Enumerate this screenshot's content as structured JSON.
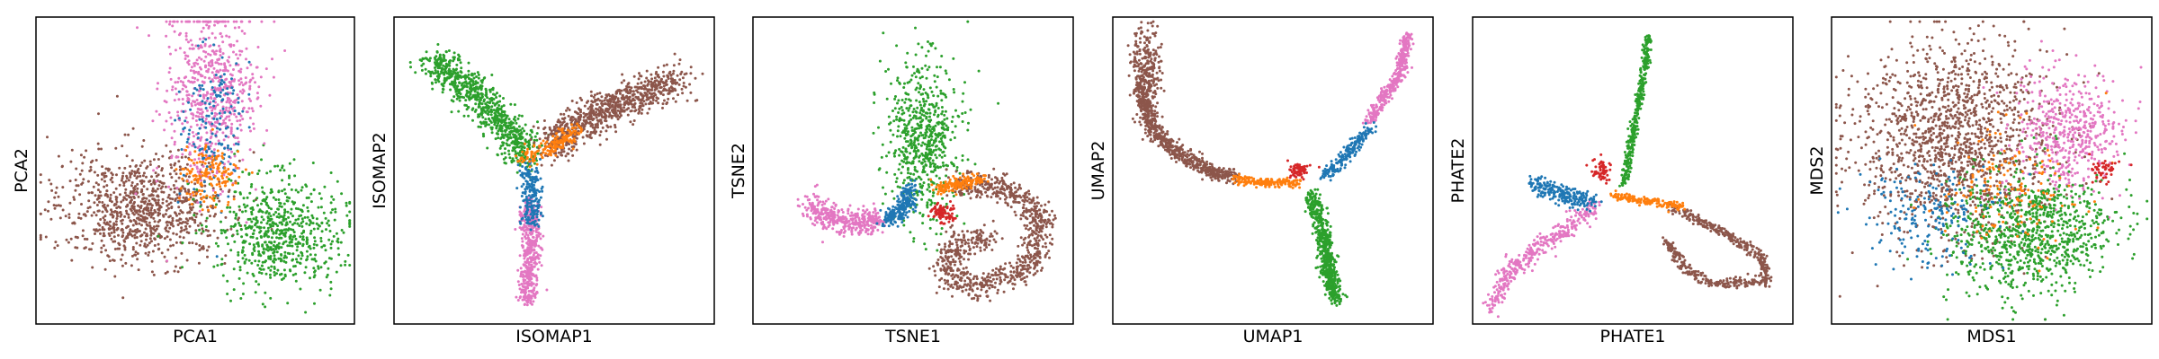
{
  "colors": {
    "blue": "#1f77b4",
    "orange": "#ff7f0e",
    "green": "#2ca02c",
    "red": "#d62728",
    "brown": "#8c564b",
    "pink": "#e377c2"
  },
  "chart_data": [
    {
      "type": "scatter",
      "xlabel": "PCA1",
      "ylabel": "PCA2",
      "xticks": [],
      "yticks": [],
      "grid": false,
      "series": [
        {
          "color": "#8c564b",
          "shape": "blob",
          "center": [
            0.33,
            0.62
          ],
          "spread": [
            0.13,
            0.09
          ],
          "count": 900
        },
        {
          "color": "#2ca02c",
          "shape": "blob",
          "center": [
            0.76,
            0.7
          ],
          "spread": [
            0.1,
            0.09
          ],
          "count": 650
        },
        {
          "color": "#e377c2",
          "shape": "blob",
          "center": [
            0.55,
            0.26
          ],
          "spread": [
            0.07,
            0.15
          ],
          "count": 650
        },
        {
          "color": "#1f77b4",
          "shape": "blob",
          "center": [
            0.55,
            0.35
          ],
          "spread": [
            0.05,
            0.12
          ],
          "count": 160
        },
        {
          "color": "#ff7f0e",
          "shape": "blob",
          "center": [
            0.55,
            0.52
          ],
          "spread": [
            0.05,
            0.05
          ],
          "count": 160
        }
      ]
    },
    {
      "type": "scatter",
      "xlabel": "ISOMAP1",
      "ylabel": "ISOMAP2",
      "xticks": [],
      "yticks": [],
      "grid": false,
      "series": [
        {
          "color": "#2ca02c",
          "shape": "path",
          "path": [
            [
              0.12,
              0.14
            ],
            [
              0.25,
              0.25
            ],
            [
              0.38,
              0.4
            ],
            [
              0.42,
              0.46
            ]
          ],
          "width": 0.055,
          "count": 800
        },
        {
          "color": "#8c564b",
          "shape": "path",
          "path": [
            [
              0.48,
              0.42
            ],
            [
              0.62,
              0.32
            ],
            [
              0.8,
              0.24
            ],
            [
              0.9,
              0.2
            ]
          ],
          "width": 0.06,
          "count": 800
        },
        {
          "color": "#e377c2",
          "shape": "path",
          "path": [
            [
              0.42,
              0.6
            ],
            [
              0.43,
              0.72
            ],
            [
              0.42,
              0.84
            ],
            [
              0.42,
              0.93
            ]
          ],
          "width": 0.03,
          "count": 450
        },
        {
          "color": "#1f77b4",
          "shape": "path",
          "path": [
            [
              0.42,
              0.48
            ],
            [
              0.43,
              0.56
            ],
            [
              0.43,
              0.68
            ]
          ],
          "width": 0.03,
          "count": 200
        },
        {
          "color": "#ff7f0e",
          "shape": "path",
          "path": [
            [
              0.4,
              0.46
            ],
            [
              0.5,
              0.42
            ],
            [
              0.58,
              0.36
            ]
          ],
          "width": 0.03,
          "count": 160
        }
      ]
    },
    {
      "type": "scatter",
      "xlabel": "TSNE1",
      "ylabel": "TSNE2",
      "xticks": [],
      "yticks": [],
      "grid": false,
      "series": [
        {
          "color": "#2ca02c",
          "shape": "blob",
          "center": [
            0.53,
            0.4
          ],
          "spread": [
            0.055,
            0.13
          ],
          "count": 650
        },
        {
          "color": "#8c564b",
          "shape": "path",
          "path": [
            [
              0.62,
              0.55
            ],
            [
              0.78,
              0.55
            ],
            [
              0.9,
              0.66
            ],
            [
              0.86,
              0.82
            ],
            [
              0.7,
              0.88
            ],
            [
              0.6,
              0.84
            ],
            [
              0.62,
              0.74
            ],
            [
              0.74,
              0.72
            ]
          ],
          "width": 0.045,
          "count": 900
        },
        {
          "color": "#e377c2",
          "shape": "path",
          "path": [
            [
              0.18,
              0.6
            ],
            [
              0.24,
              0.66
            ],
            [
              0.34,
              0.67
            ],
            [
              0.4,
              0.66
            ]
          ],
          "width": 0.04,
          "count": 400
        },
        {
          "color": "#1f77b4",
          "shape": "path",
          "path": [
            [
              0.42,
              0.66
            ],
            [
              0.47,
              0.62
            ],
            [
              0.5,
              0.56
            ]
          ],
          "width": 0.03,
          "count": 220
        },
        {
          "color": "#ff7f0e",
          "shape": "path",
          "path": [
            [
              0.58,
              0.56
            ],
            [
              0.65,
              0.54
            ],
            [
              0.72,
              0.53
            ]
          ],
          "width": 0.022,
          "count": 160
        },
        {
          "color": "#d62728",
          "shape": "blob",
          "center": [
            0.59,
            0.64
          ],
          "spread": [
            0.018,
            0.014
          ],
          "count": 90
        }
      ]
    },
    {
      "type": "scatter",
      "xlabel": "UMAP1",
      "ylabel": "UMAP2",
      "xticks": [],
      "yticks": [],
      "grid": false,
      "series": [
        {
          "color": "#8c564b",
          "shape": "path",
          "path": [
            [
              0.09,
              0.22
            ],
            [
              0.12,
              0.36
            ],
            [
              0.2,
              0.44
            ],
            [
              0.3,
              0.5
            ],
            [
              0.38,
              0.52
            ]
          ],
          "width": 0.025,
          "count": 650
        },
        {
          "color": "#8c564b",
          "shape": "blob",
          "center": [
            0.1,
            0.16
          ],
          "spread": [
            0.025,
            0.06
          ],
          "count": 250
        },
        {
          "color": "#ff7f0e",
          "shape": "path",
          "path": [
            [
              0.38,
              0.53
            ],
            [
              0.48,
              0.54
            ],
            [
              0.58,
              0.54
            ]
          ],
          "width": 0.014,
          "count": 180
        },
        {
          "color": "#2ca02c",
          "shape": "path",
          "path": [
            [
              0.62,
              0.58
            ],
            [
              0.66,
              0.72
            ],
            [
              0.68,
              0.86
            ],
            [
              0.7,
              0.92
            ]
          ],
          "width": 0.025,
          "count": 600
        },
        {
          "color": "#e377c2",
          "shape": "path",
          "path": [
            [
              0.92,
              0.06
            ],
            [
              0.9,
              0.18
            ],
            [
              0.84,
              0.28
            ],
            [
              0.8,
              0.34
            ]
          ],
          "width": 0.018,
          "count": 350
        },
        {
          "color": "#1f77b4",
          "shape": "path",
          "path": [
            [
              0.8,
              0.36
            ],
            [
              0.74,
              0.44
            ],
            [
              0.66,
              0.52
            ]
          ],
          "width": 0.018,
          "count": 200
        },
        {
          "color": "#d62728",
          "shape": "blob",
          "center": [
            0.58,
            0.5
          ],
          "spread": [
            0.015,
            0.012
          ],
          "count": 70
        }
      ]
    },
    {
      "type": "scatter",
      "xlabel": "PHATE1",
      "ylabel": "PHATE2",
      "xticks": [],
      "yticks": [],
      "grid": false,
      "series": [
        {
          "color": "#2ca02c",
          "shape": "path",
          "path": [
            [
              0.55,
              0.06
            ],
            [
              0.53,
              0.22
            ],
            [
              0.5,
              0.38
            ],
            [
              0.47,
              0.55
            ]
          ],
          "width": 0.012,
          "count": 350
        },
        {
          "color": "#8c564b",
          "shape": "path",
          "path": [
            [
              0.62,
              0.62
            ],
            [
              0.78,
              0.7
            ],
            [
              0.9,
              0.78
            ],
            [
              0.92,
              0.86
            ],
            [
              0.76,
              0.87
            ],
            [
              0.66,
              0.82
            ],
            [
              0.6,
              0.72
            ]
          ],
          "width": 0.016,
          "count": 500
        },
        {
          "color": "#e377c2",
          "shape": "path",
          "path": [
            [
              0.38,
              0.62
            ],
            [
              0.25,
              0.72
            ],
            [
              0.12,
              0.82
            ],
            [
              0.06,
              0.94
            ]
          ],
          "width": 0.03,
          "count": 350
        },
        {
          "color": "#1f77b4",
          "shape": "path",
          "path": [
            [
              0.18,
              0.54
            ],
            [
              0.28,
              0.58
            ],
            [
              0.38,
              0.6
            ]
          ],
          "width": 0.03,
          "count": 220
        },
        {
          "color": "#ff7f0e",
          "shape": "path",
          "path": [
            [
              0.44,
              0.58
            ],
            [
              0.55,
              0.6
            ],
            [
              0.66,
              0.62
            ]
          ],
          "width": 0.014,
          "count": 160
        },
        {
          "color": "#d62728",
          "shape": "blob",
          "center": [
            0.4,
            0.5
          ],
          "spread": [
            0.014,
            0.018
          ],
          "count": 60
        }
      ]
    },
    {
      "type": "scatter",
      "xlabel": "MDS1",
      "ylabel": "MDS2",
      "xticks": [],
      "yticks": [],
      "grid": false,
      "series": [
        {
          "color": "#8c564b",
          "shape": "blob",
          "center": [
            0.38,
            0.4
          ],
          "spread": [
            0.15,
            0.16
          ],
          "count": 1400
        },
        {
          "color": "#e377c2",
          "shape": "blob",
          "center": [
            0.74,
            0.38
          ],
          "spread": [
            0.08,
            0.1
          ],
          "count": 500
        },
        {
          "color": "#2ca02c",
          "shape": "blob",
          "center": [
            0.62,
            0.7
          ],
          "spread": [
            0.13,
            0.1
          ],
          "count": 900
        },
        {
          "color": "#1f77b4",
          "shape": "blob",
          "center": [
            0.3,
            0.65
          ],
          "spread": [
            0.1,
            0.08
          ],
          "count": 200
        },
        {
          "color": "#ff7f0e",
          "shape": "blob",
          "center": [
            0.55,
            0.55
          ],
          "spread": [
            0.12,
            0.1
          ],
          "count": 150
        },
        {
          "color": "#d62728",
          "shape": "blob",
          "center": [
            0.85,
            0.5
          ],
          "spread": [
            0.02,
            0.02
          ],
          "count": 50
        }
      ]
    }
  ]
}
